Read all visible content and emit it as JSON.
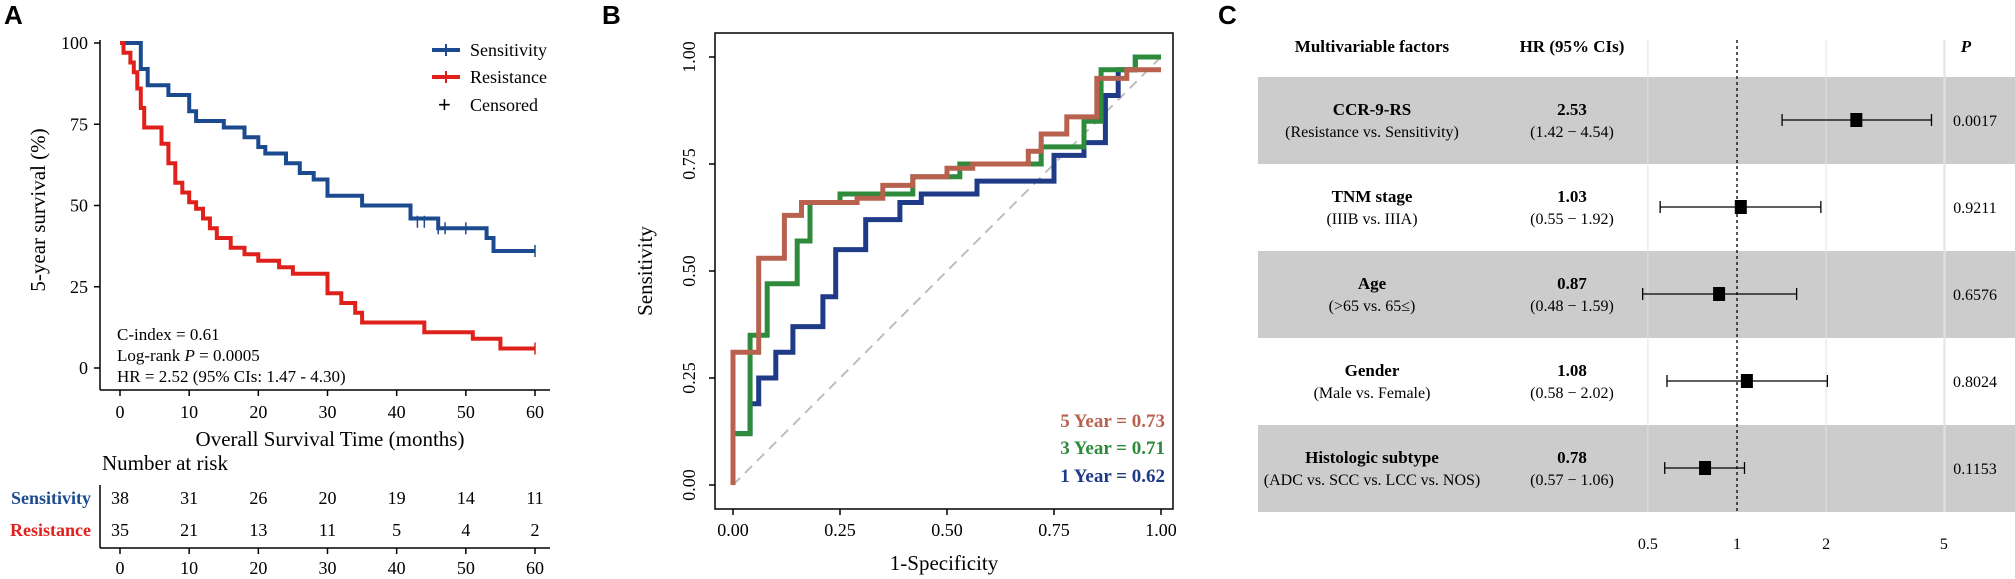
{
  "panels": {
    "a": "A",
    "b": "B",
    "c": "C"
  },
  "colors": {
    "sensitivity": "#1c4a8f",
    "resistance": "#e0201b",
    "roc5": "#b8614f",
    "roc3": "#2e8b3c",
    "roc1": "#1f3a87",
    "band": "#cccccc",
    "diag": "#bdbdbd"
  },
  "km": {
    "ylabel": "5-year survival (%)",
    "xlabel": "Overall Survival Time (months)",
    "x_ticks": [
      "0",
      "10",
      "20",
      "30",
      "40",
      "50",
      "60"
    ],
    "y_ticks": [
      "0",
      "25",
      "50",
      "75",
      "100"
    ],
    "legend": [
      "Sensitivity",
      "Resistance",
      "Censored"
    ],
    "legend_symbol": "+",
    "cindex": "C-index = 0.61",
    "logrank_prefix": "Log-rank ",
    "logrank_p": "P",
    "logrank_value": " = 0.0005",
    "hr": "HR = 2.52 (95% CIs: 1.47 - 4.30)",
    "risk_title": "Number at risk",
    "risk_rows": [
      {
        "label": "Sensitivity",
        "values": [
          "38",
          "31",
          "26",
          "20",
          "19",
          "14",
          "11"
        ]
      },
      {
        "label": "Resistance",
        "values": [
          "35",
          "21",
          "13",
          "11",
          "5",
          "4",
          "2"
        ]
      }
    ]
  },
  "roc": {
    "xlabel": "1-Specificity",
    "ylabel": "Sensitivity",
    "x_ticks": [
      "0.00",
      "0.25",
      "0.50",
      "0.75",
      "1.00"
    ],
    "y_ticks": [
      "0.00",
      "0.25",
      "0.50",
      "0.75",
      "1.00"
    ],
    "legend": [
      "5 Year  =  0.73",
      "3 Year  =  0.71",
      "1 Year  =  0.62"
    ]
  },
  "forest": {
    "headers": {
      "factors": "Multivariable factors",
      "hr": "HR (95% CIs)",
      "p": "P"
    },
    "axis_ticks": [
      "0.5",
      "1",
      "2",
      "5"
    ],
    "rows": [
      {
        "name": "CCR-9-RS",
        "comparison": "(Resistance vs. Sensitivity)",
        "hr": "2.53",
        "ci": "(1.42 − 4.54)",
        "p": "0.0017"
      },
      {
        "name": "TNM stage",
        "comparison": "(IIIB vs. IIIA)",
        "hr": "1.03",
        "ci": "(0.55 − 1.92)",
        "p": "0.9211"
      },
      {
        "name": "Age",
        "comparison": "(>65 vs. 65≤)",
        "hr": "0.87",
        "ci": "(0.48 − 1.59)",
        "p": "0.6576"
      },
      {
        "name": "Gender",
        "comparison": "(Male vs. Female)",
        "hr": "1.08",
        "ci": "(0.58 − 2.02)",
        "p": "0.8024"
      },
      {
        "name": "Histologic subtype",
        "comparison": "(ADC vs. SCC vs. LCC vs. NOS)",
        "hr": "0.78",
        "ci": "(0.57 − 1.06)",
        "p": "0.1153"
      }
    ]
  },
  "chart_data": [
    {
      "type": "line",
      "subtype": "kaplan-meier",
      "title": "",
      "xlabel": "Overall Survival Time (months)",
      "ylabel": "5-year survival (%)",
      "xlim": [
        0,
        60
      ],
      "ylim": [
        0,
        100
      ],
      "series": [
        {
          "name": "Sensitivity",
          "steps": [
            [
              0,
              100
            ],
            [
              3,
              100
            ],
            [
              3,
              92
            ],
            [
              4,
              92
            ],
            [
              4,
              87
            ],
            [
              7,
              87
            ],
            [
              7,
              84
            ],
            [
              10,
              84
            ],
            [
              10,
              79
            ],
            [
              11,
              79
            ],
            [
              11,
              76
            ],
            [
              15,
              76
            ],
            [
              15,
              74
            ],
            [
              18,
              74
            ],
            [
              18,
              71
            ],
            [
              20,
              71
            ],
            [
              20,
              68
            ],
            [
              21,
              68
            ],
            [
              21,
              66
            ],
            [
              24,
              66
            ],
            [
              24,
              63
            ],
            [
              26,
              63
            ],
            [
              26,
              60
            ],
            [
              28,
              60
            ],
            [
              28,
              58
            ],
            [
              30,
              58
            ],
            [
              30,
              53
            ],
            [
              35,
              53
            ],
            [
              35,
              50
            ],
            [
              42,
              50
            ],
            [
              42,
              46
            ],
            [
              46,
              46
            ],
            [
              46,
              43
            ],
            [
              53,
              43
            ],
            [
              53,
              40
            ],
            [
              54,
              40
            ],
            [
              54,
              36
            ],
            [
              60,
              36
            ]
          ],
          "censored": [
            [
              43,
              45
            ],
            [
              44,
              45
            ],
            [
              46,
              43
            ],
            [
              47,
              43
            ],
            [
              50,
              43
            ],
            [
              60,
              36
            ]
          ]
        },
        {
          "name": "Resistance",
          "steps": [
            [
              0,
              100
            ],
            [
              0.5,
              100
            ],
            [
              0.5,
              97
            ],
            [
              1.5,
              97
            ],
            [
              1.5,
              94
            ],
            [
              2,
              94
            ],
            [
              2,
              91
            ],
            [
              2.5,
              91
            ],
            [
              2.5,
              86
            ],
            [
              3,
              86
            ],
            [
              3,
              80
            ],
            [
              3.5,
              80
            ],
            [
              3.5,
              74
            ],
            [
              6,
              74
            ],
            [
              6,
              69
            ],
            [
              7,
              69
            ],
            [
              7,
              63
            ],
            [
              8,
              63
            ],
            [
              8,
              57
            ],
            [
              9,
              57
            ],
            [
              9,
              54
            ],
            [
              10,
              54
            ],
            [
              10,
              51
            ],
            [
              11,
              51
            ],
            [
              11,
              49
            ],
            [
              12,
              49
            ],
            [
              12,
              46
            ],
            [
              13,
              46
            ],
            [
              13,
              43
            ],
            [
              14,
              43
            ],
            [
              14,
              40
            ],
            [
              16,
              40
            ],
            [
              16,
              37
            ],
            [
              18,
              37
            ],
            [
              18,
              35
            ],
            [
              20,
              35
            ],
            [
              20,
              33
            ],
            [
              23,
              33
            ],
            [
              23,
              31
            ],
            [
              25,
              31
            ],
            [
              25,
              29
            ],
            [
              30,
              29
            ],
            [
              30,
              23
            ],
            [
              32,
              23
            ],
            [
              32,
              20
            ],
            [
              34,
              20
            ],
            [
              34,
              17
            ],
            [
              35,
              17
            ],
            [
              35,
              14
            ],
            [
              44,
              14
            ],
            [
              44,
              11
            ],
            [
              51,
              11
            ],
            [
              51,
              9
            ],
            [
              55,
              9
            ],
            [
              55,
              6
            ],
            [
              60,
              6
            ]
          ],
          "censored": [
            [
              60,
              6
            ]
          ]
        }
      ],
      "annotations": [
        "C-index = 0.61",
        "Log-rank P = 0.0005",
        "HR = 2.52 (95% CIs: 1.47 - 4.30)"
      ],
      "legend_position": "top-right"
    },
    {
      "type": "line",
      "subtype": "roc",
      "xlabel": "1-Specificity",
      "ylabel": "Sensitivity",
      "xlim": [
        0,
        1
      ],
      "ylim": [
        0,
        1
      ],
      "series": [
        {
          "name": "5 Year",
          "auc": 0.73,
          "points": [
            [
              0,
              0
            ],
            [
              0,
              0.31
            ],
            [
              0.06,
              0.31
            ],
            [
              0.06,
              0.53
            ],
            [
              0.12,
              0.53
            ],
            [
              0.12,
              0.63
            ],
            [
              0.16,
              0.63
            ],
            [
              0.16,
              0.66
            ],
            [
              0.29,
              0.66
            ],
            [
              0.29,
              0.67
            ],
            [
              0.35,
              0.67
            ],
            [
              0.35,
              0.7
            ],
            [
              0.42,
              0.7
            ],
            [
              0.42,
              0.72
            ],
            [
              0.5,
              0.72
            ],
            [
              0.5,
              0.74
            ],
            [
              0.56,
              0.74
            ],
            [
              0.56,
              0.75
            ],
            [
              0.69,
              0.75
            ],
            [
              0.69,
              0.78
            ],
            [
              0.72,
              0.78
            ],
            [
              0.72,
              0.82
            ],
            [
              0.78,
              0.82
            ],
            [
              0.78,
              0.86
            ],
            [
              0.85,
              0.86
            ],
            [
              0.85,
              0.95
            ],
            [
              0.92,
              0.95
            ],
            [
              0.92,
              0.97
            ],
            [
              1.0,
              0.97
            ]
          ]
        },
        {
          "name": "3 Year",
          "auc": 0.71,
          "points": [
            [
              0,
              0.12
            ],
            [
              0.04,
              0.12
            ],
            [
              0.04,
              0.35
            ],
            [
              0.08,
              0.35
            ],
            [
              0.08,
              0.47
            ],
            [
              0.15,
              0.47
            ],
            [
              0.15,
              0.57
            ],
            [
              0.18,
              0.57
            ],
            [
              0.18,
              0.66
            ],
            [
              0.25,
              0.66
            ],
            [
              0.25,
              0.68
            ],
            [
              0.42,
              0.68
            ],
            [
              0.42,
              0.72
            ],
            [
              0.53,
              0.72
            ],
            [
              0.53,
              0.75
            ],
            [
              0.72,
              0.75
            ],
            [
              0.72,
              0.79
            ],
            [
              0.82,
              0.79
            ],
            [
              0.82,
              0.85
            ],
            [
              0.86,
              0.85
            ],
            [
              0.86,
              0.97
            ],
            [
              0.94,
              0.97
            ],
            [
              0.94,
              1.0
            ],
            [
              1.0,
              1.0
            ]
          ]
        },
        {
          "name": "1 Year",
          "auc": 0.62,
          "points": [
            [
              0,
              0.12
            ],
            [
              0.04,
              0.12
            ],
            [
              0.04,
              0.19
            ],
            [
              0.06,
              0.19
            ],
            [
              0.06,
              0.25
            ],
            [
              0.1,
              0.25
            ],
            [
              0.1,
              0.31
            ],
            [
              0.14,
              0.31
            ],
            [
              0.14,
              0.37
            ],
            [
              0.21,
              0.37
            ],
            [
              0.21,
              0.44
            ],
            [
              0.24,
              0.44
            ],
            [
              0.24,
              0.55
            ],
            [
              0.31,
              0.55
            ],
            [
              0.31,
              0.62
            ],
            [
              0.39,
              0.62
            ],
            [
              0.39,
              0.66
            ],
            [
              0.44,
              0.66
            ],
            [
              0.44,
              0.68
            ],
            [
              0.57,
              0.68
            ],
            [
              0.57,
              0.71
            ],
            [
              0.75,
              0.71
            ],
            [
              0.75,
              0.77
            ],
            [
              0.82,
              0.77
            ],
            [
              0.82,
              0.8
            ],
            [
              0.87,
              0.8
            ],
            [
              0.87,
              0.91
            ],
            [
              0.9,
              0.91
            ],
            [
              0.9,
              0.97
            ],
            [
              0.94,
              0.97
            ],
            [
              0.94,
              1.0
            ],
            [
              1.0,
              1.0
            ]
          ]
        }
      ],
      "reference_line": "diagonal",
      "legend_position": "bottom-right"
    },
    {
      "type": "scatter",
      "subtype": "forest",
      "xscale": "log",
      "x_ticks": [
        0.5,
        1,
        2,
        5
      ],
      "reference": 1,
      "rows": [
        {
          "label": "CCR-9-RS",
          "hr": 2.53,
          "lower": 1.42,
          "upper": 4.54,
          "p": 0.0017
        },
        {
          "label": "TNM stage",
          "hr": 1.03,
          "lower": 0.55,
          "upper": 1.92,
          "p": 0.9211
        },
        {
          "label": "Age",
          "hr": 0.87,
          "lower": 0.48,
          "upper": 1.59,
          "p": 0.6576
        },
        {
          "label": "Gender",
          "hr": 1.08,
          "lower": 0.58,
          "upper": 2.02,
          "p": 0.8024
        },
        {
          "label": "Histologic subtype",
          "hr": 0.78,
          "lower": 0.57,
          "upper": 1.06,
          "p": 0.1153
        }
      ]
    }
  ]
}
